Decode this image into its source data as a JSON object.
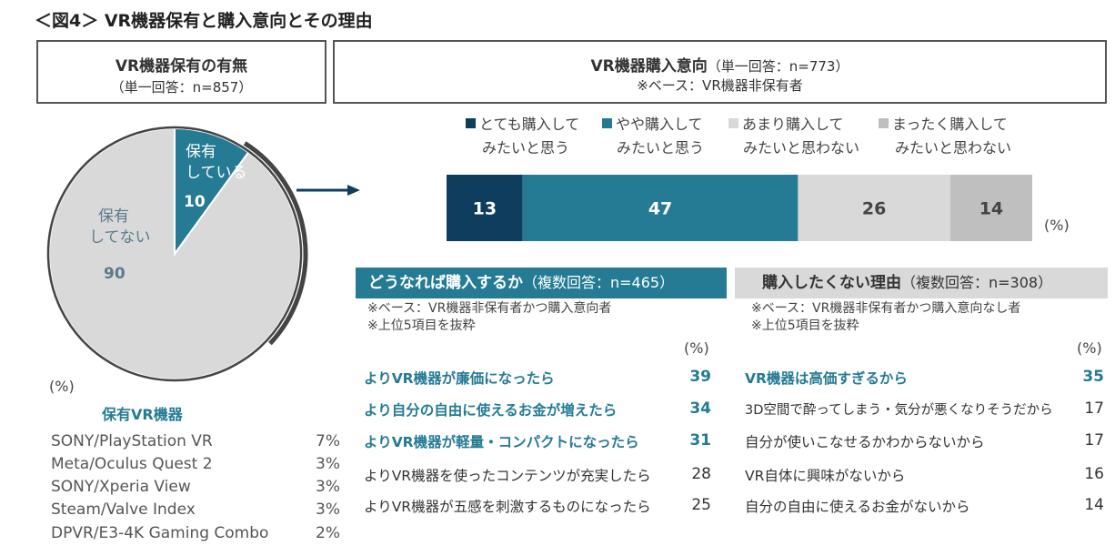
{
  "figure_title": "＜図4＞ VR機器保有と購入意向とその理由",
  "ownership_box": {
    "title": "VR機器保有の有無",
    "subtitle": "（単一回答：n=857）"
  },
  "intent_box": {
    "title": "VR機器購入意向",
    "subtitle": "（単一回答：n=773）",
    "note": "※ベース：VR機器非保有者"
  },
  "colors": {
    "dark_navy": "#0f3d5e",
    "teal": "#247b93",
    "light_gray": "#d9d9d9",
    "mid_gray": "#bfbfbf",
    "pie_gray": "#d9d9d9"
  },
  "chart_data": [
    {
      "type": "pie",
      "title": "VR機器保有の有無",
      "labels": [
        "保有している",
        "保有してない"
      ],
      "values": [
        10,
        90
      ],
      "unit": "(%)"
    },
    {
      "type": "bar",
      "orientation": "horizontal-stacked",
      "title": "VR機器購入意向",
      "categories": [
        "とても購入してみたいと思う",
        "やや購入してみたいと思う",
        "あまり購入してみたいと思わない",
        "まったく購入してみたいと思わない"
      ],
      "values": [
        13,
        47,
        26,
        14
      ],
      "unit": "(%)",
      "xlim": [
        0,
        100
      ]
    },
    {
      "type": "table",
      "title": "どうなれば購入するか",
      "rows": [
        {
          "label": "よりVR機器が廉価になったら",
          "value": 39
        },
        {
          "label": "より自分の自由に使えるお金が増えたら",
          "value": 34
        },
        {
          "label": "よりVR機器が軽量・コンパクトになったら",
          "value": 31
        },
        {
          "label": "よりVR機器を使ったコンテンツが充実したら",
          "value": 28
        },
        {
          "label": "よりVR機器が五感を刺激するものになったら",
          "value": 25
        }
      ]
    },
    {
      "type": "table",
      "title": "購入したくない理由",
      "rows": [
        {
          "label": "VR機器は高価すぎるから",
          "value": 35
        },
        {
          "label": "3D空間で酔ってしまう・気分が悪くなりそうだから",
          "value": 17
        },
        {
          "label": "自分が使いこなせるかわからないから",
          "value": 17
        },
        {
          "label": "VR自体に興味がないから",
          "value": 16
        },
        {
          "label": "自分の自由に使えるお金がないから",
          "value": 14
        }
      ]
    },
    {
      "type": "table",
      "title": "保有VR機器",
      "rows": [
        {
          "label": "SONY/PlayStation VR",
          "value": "7%"
        },
        {
          "label": "Meta/Oculus Quest 2",
          "value": "3%"
        },
        {
          "label": "SONY/Xperia View",
          "value": "3%"
        },
        {
          "label": "Steam/Valve Index",
          "value": "3%"
        },
        {
          "label": "DPVR/E3-4K Gaming Combo",
          "value": "2%"
        }
      ]
    }
  ],
  "pie": {
    "owned_label_line1": "保有",
    "owned_label_line2": "している",
    "owned_value": "10",
    "not_owned_label_line1": "保有",
    "not_owned_label_line2": "してない",
    "not_owned_value": "90",
    "unit": "(%)"
  },
  "legend": [
    {
      "line1": "とても購入して",
      "line2": "みたいと思う"
    },
    {
      "line1": "やや購入して",
      "line2": "みたいと思う"
    },
    {
      "line1": "あまり購入して",
      "line2": "みたいと思わない"
    },
    {
      "line1": "まったく購入して",
      "line2": "みたいと思わない"
    }
  ],
  "bar_unit": "(%)",
  "owned_devices": {
    "title": "保有VR機器",
    "items": [
      {
        "name": "SONY/PlayStation VR",
        "pct": "7%"
      },
      {
        "name": "Meta/Oculus Quest 2",
        "pct": "3%"
      },
      {
        "name": "SONY/Xperia View",
        "pct": "3%"
      },
      {
        "name": "Steam/Valve Index",
        "pct": "3%"
      },
      {
        "name": "DPVR/E3-4K Gaming Combo",
        "pct": "2%"
      }
    ]
  },
  "how_section": {
    "title": "どうなれば購入するか",
    "subtitle": "（複数回答：n=465）",
    "note1": "※ベース：VR機器非保有者かつ購入意向者",
    "note2": "※上位5項目を抜粋",
    "unit": "(%)"
  },
  "why_section": {
    "title": "購入したくない理由",
    "subtitle": "（複数回答：n=308）",
    "note1": "※ベース：VR機器非保有者かつ購入意向なし者",
    "note2": "※上位5項目を抜粋",
    "unit": "(%)"
  }
}
